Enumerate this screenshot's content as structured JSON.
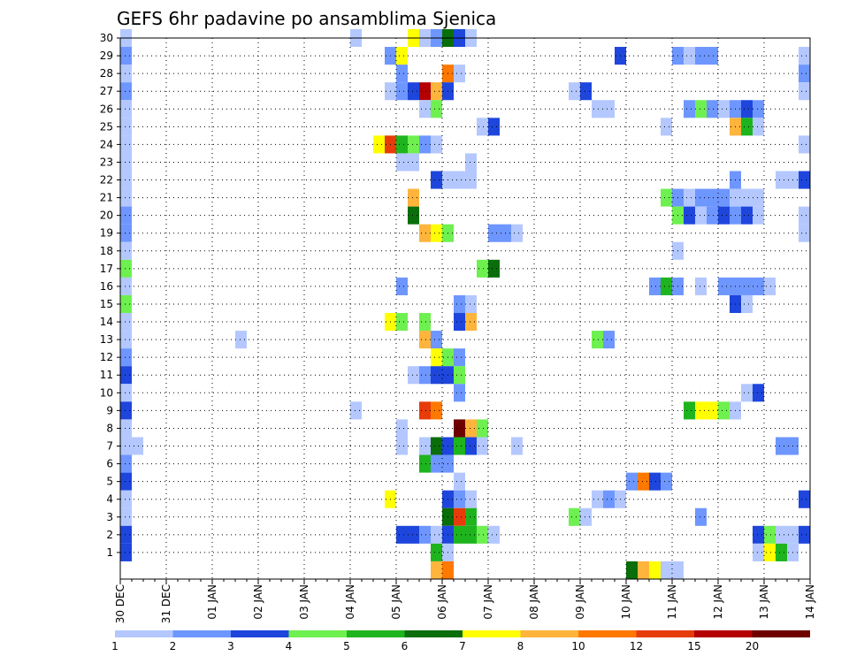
{
  "chart_data": {
    "type": "heatmap",
    "title": "GEFS 6hr padavine po ansamblima Sjenica",
    "xlabel": "",
    "ylabel": "",
    "x_tick_labels": [
      "30 DEC",
      "31 DEC",
      "01 JAN",
      "02 JAN",
      "03 JAN",
      "04 JAN",
      "05 JAN",
      "06 JAN",
      "07 JAN",
      "08 JAN",
      "09 JAN",
      "10 JAN",
      "11 JAN",
      "12 JAN",
      "13 JAN",
      "14 JAN"
    ],
    "y_tick_labels": [
      "1",
      "2",
      "3",
      "4",
      "5",
      "6",
      "7",
      "8",
      "9",
      "10",
      "11",
      "12",
      "13",
      "14",
      "15",
      "16",
      "17",
      "18",
      "19",
      "20",
      "21",
      "22",
      "23",
      "24",
      "25",
      "26",
      "27",
      "28",
      "29",
      "30"
    ],
    "x_range_days": [
      0,
      15
    ],
    "members": 30,
    "grid": true,
    "colorbar": {
      "labels": [
        "1",
        "2",
        "3",
        "4",
        "5",
        "6",
        "7",
        "8",
        "10",
        "12",
        "15",
        "20"
      ],
      "colors": [
        "#b4c8ff",
        "#6e96ff",
        "#1e46dc",
        "#6ef050",
        "#1eb41e",
        "#0a6e0a",
        "#ffff00",
        "#ffb43c",
        "#ff7800",
        "#e63c0a",
        "#b40000",
        "#6e0000"
      ]
    },
    "cells": [
      {
        "m": 30,
        "d": 0.0,
        "c": 1
      },
      {
        "m": 29,
        "d": 0.0,
        "c": 2
      },
      {
        "m": 28,
        "d": 0.0,
        "c": 1
      },
      {
        "m": 27,
        "d": 0.0,
        "c": 2
      },
      {
        "m": 26,
        "d": 0.0,
        "c": 1
      },
      {
        "m": 25,
        "d": 0.0,
        "c": 1
      },
      {
        "m": 24,
        "d": 0.0,
        "c": 1
      },
      {
        "m": 23,
        "d": 0.0,
        "c": 1
      },
      {
        "m": 22,
        "d": 0.0,
        "c": 1
      },
      {
        "m": 21,
        "d": 0.0,
        "c": 1
      },
      {
        "m": 20,
        "d": 0.0,
        "c": 2
      },
      {
        "m": 19,
        "d": 0.0,
        "c": 2
      },
      {
        "m": 18,
        "d": 0.0,
        "c": 1
      },
      {
        "m": 17,
        "d": 0.0,
        "c": 4
      },
      {
        "m": 16,
        "d": 0.0,
        "c": 1
      },
      {
        "m": 15,
        "d": 0.0,
        "c": 4
      },
      {
        "m": 14,
        "d": 0.0,
        "c": 1
      },
      {
        "m": 13,
        "d": 0.0,
        "c": 1
      },
      {
        "m": 12,
        "d": 0.0,
        "c": 2
      },
      {
        "m": 11,
        "d": 0.0,
        "c": 3
      },
      {
        "m": 10,
        "d": 0.0,
        "c": 1
      },
      {
        "m": 9,
        "d": 0.0,
        "c": 3
      },
      {
        "m": 8,
        "d": 0.0,
        "c": 1
      },
      {
        "m": 7,
        "d": 0.0,
        "c": 1
      },
      {
        "m": 7,
        "d": 0.25,
        "c": 1
      },
      {
        "m": 6,
        "d": 0.0,
        "c": 2
      },
      {
        "m": 5,
        "d": 0.0,
        "c": 3
      },
      {
        "m": 4,
        "d": 0.0,
        "c": 1
      },
      {
        "m": 3,
        "d": 0.0,
        "c": 1
      },
      {
        "m": 2,
        "d": 0.0,
        "c": 3
      },
      {
        "m": 1,
        "d": 0.0,
        "c": 3
      },
      {
        "m": 13,
        "d": 2.5,
        "c": 1
      },
      {
        "m": 30,
        "d": 5.0,
        "c": 1
      },
      {
        "m": 9,
        "d": 5.0,
        "c": 1
      },
      {
        "m": 30,
        "d": 6.25,
        "c": 7
      },
      {
        "m": 30,
        "d": 6.5,
        "c": 1
      },
      {
        "m": 30,
        "d": 6.75,
        "c": 2
      },
      {
        "m": 30,
        "d": 7.0,
        "c": 6
      },
      {
        "m": 30,
        "d": 7.25,
        "c": 3
      },
      {
        "m": 30,
        "d": 7.5,
        "c": 1
      },
      {
        "m": 29,
        "d": 5.75,
        "c": 2
      },
      {
        "m": 29,
        "d": 6.0,
        "c": 7
      },
      {
        "m": 28,
        "d": 6.0,
        "c": 2
      },
      {
        "m": 28,
        "d": 7.0,
        "c": 9
      },
      {
        "m": 28,
        "d": 7.25,
        "c": 1
      },
      {
        "m": 27,
        "d": 5.75,
        "c": 1
      },
      {
        "m": 27,
        "d": 6.0,
        "c": 2
      },
      {
        "m": 27,
        "d": 6.25,
        "c": 3
      },
      {
        "m": 27,
        "d": 6.5,
        "c": 11
      },
      {
        "m": 27,
        "d": 6.75,
        "c": 8
      },
      {
        "m": 27,
        "d": 7.0,
        "c": 3
      },
      {
        "m": 26,
        "d": 6.5,
        "c": 1
      },
      {
        "m": 26,
        "d": 6.75,
        "c": 4
      },
      {
        "m": 25,
        "d": 7.75,
        "c": 1
      },
      {
        "m": 25,
        "d": 8.0,
        "c": 3
      },
      {
        "m": 24,
        "d": 5.5,
        "c": 7
      },
      {
        "m": 24,
        "d": 5.75,
        "c": 10
      },
      {
        "m": 24,
        "d": 6.0,
        "c": 5
      },
      {
        "m": 24,
        "d": 6.25,
        "c": 4
      },
      {
        "m": 24,
        "d": 6.5,
        "c": 2
      },
      {
        "m": 24,
        "d": 6.75,
        "c": 1
      },
      {
        "m": 23,
        "d": 6.0,
        "c": 1
      },
      {
        "m": 23,
        "d": 6.25,
        "c": 1
      },
      {
        "m": 23,
        "d": 7.5,
        "c": 1
      },
      {
        "m": 22,
        "d": 6.75,
        "c": 3
      },
      {
        "m": 22,
        "d": 7.0,
        "c": 1
      },
      {
        "m": 22,
        "d": 7.25,
        "c": 1
      },
      {
        "m": 22,
        "d": 7.5,
        "c": 1
      },
      {
        "m": 21,
        "d": 6.25,
        "c": 8
      },
      {
        "m": 20,
        "d": 6.25,
        "c": 6
      },
      {
        "m": 19,
        "d": 6.5,
        "c": 8
      },
      {
        "m": 19,
        "d": 6.75,
        "c": 7
      },
      {
        "m": 19,
        "d": 7.0,
        "c": 4
      },
      {
        "m": 19,
        "d": 8.0,
        "c": 2
      },
      {
        "m": 19,
        "d": 8.25,
        "c": 2
      },
      {
        "m": 19,
        "d": 8.5,
        "c": 1
      },
      {
        "m": 16,
        "d": 6.0,
        "c": 2
      },
      {
        "m": 17,
        "d": 7.75,
        "c": 4
      },
      {
        "m": 17,
        "d": 8.0,
        "c": 6
      },
      {
        "m": 15,
        "d": 7.25,
        "c": 2
      },
      {
        "m": 15,
        "d": 7.5,
        "c": 1
      },
      {
        "m": 14,
        "d": 5.75,
        "c": 7
      },
      {
        "m": 14,
        "d": 6.0,
        "c": 4
      },
      {
        "m": 14,
        "d": 6.5,
        "c": 4
      },
      {
        "m": 14,
        "d": 7.25,
        "c": 3
      },
      {
        "m": 14,
        "d": 7.5,
        "c": 8
      },
      {
        "m": 13,
        "d": 6.5,
        "c": 8
      },
      {
        "m": 13,
        "d": 6.75,
        "c": 2
      },
      {
        "m": 12,
        "d": 6.75,
        "c": 7
      },
      {
        "m": 12,
        "d": 7.0,
        "c": 4
      },
      {
        "m": 12,
        "d": 7.25,
        "c": 2
      },
      {
        "m": 11,
        "d": 6.25,
        "c": 1
      },
      {
        "m": 11,
        "d": 6.5,
        "c": 2
      },
      {
        "m": 11,
        "d": 6.75,
        "c": 3
      },
      {
        "m": 11,
        "d": 7.0,
        "c": 3
      },
      {
        "m": 11,
        "d": 7.25,
        "c": 4
      },
      {
        "m": 10,
        "d": 7.25,
        "c": 2
      },
      {
        "m": 9,
        "d": 6.5,
        "c": 10
      },
      {
        "m": 9,
        "d": 6.75,
        "c": 9
      },
      {
        "m": 8,
        "d": 6.0,
        "c": 1
      },
      {
        "m": 8,
        "d": 7.25,
        "c": 12
      },
      {
        "m": 8,
        "d": 7.5,
        "c": 8
      },
      {
        "m": 8,
        "d": 7.75,
        "c": 4
      },
      {
        "m": 7,
        "d": 6.0,
        "c": 1
      },
      {
        "m": 7,
        "d": 6.5,
        "c": 1
      },
      {
        "m": 7,
        "d": 6.75,
        "c": 6
      },
      {
        "m": 7,
        "d": 7.0,
        "c": 3
      },
      {
        "m": 7,
        "d": 7.25,
        "c": 5
      },
      {
        "m": 7,
        "d": 7.5,
        "c": 3
      },
      {
        "m": 7,
        "d": 7.75,
        "c": 1
      },
      {
        "m": 7,
        "d": 8.5,
        "c": 1
      },
      {
        "m": 6,
        "d": 6.5,
        "c": 5
      },
      {
        "m": 6,
        "d": 6.75,
        "c": 2
      },
      {
        "m": 6,
        "d": 7.0,
        "c": 2
      },
      {
        "m": 5,
        "d": 7.25,
        "c": 1
      },
      {
        "m": 4,
        "d": 5.75,
        "c": 7
      },
      {
        "m": 4,
        "d": 7.0,
        "c": 3
      },
      {
        "m": 4,
        "d": 7.25,
        "c": 2
      },
      {
        "m": 4,
        "d": 7.5,
        "c": 1
      },
      {
        "m": 3,
        "d": 7.0,
        "c": 6
      },
      {
        "m": 3,
        "d": 7.25,
        "c": 10
      },
      {
        "m": 3,
        "d": 7.5,
        "c": 5
      },
      {
        "m": 2,
        "d": 6.0,
        "c": 3
      },
      {
        "m": 2,
        "d": 6.25,
        "c": 3
      },
      {
        "m": 2,
        "d": 6.5,
        "c": 2
      },
      {
        "m": 2,
        "d": 6.75,
        "c": 1
      },
      {
        "m": 2,
        "d": 7.0,
        "c": 3
      },
      {
        "m": 2,
        "d": 7.25,
        "c": 5
      },
      {
        "m": 2,
        "d": 7.5,
        "c": 5
      },
      {
        "m": 2,
        "d": 7.75,
        "c": 4
      },
      {
        "m": 2,
        "d": 8.0,
        "c": 1
      },
      {
        "m": 1,
        "d": 6.75,
        "c": 5
      },
      {
        "m": 1,
        "d": 7.0,
        "c": 1
      },
      {
        "m": 0,
        "d": 6.75,
        "c": 8
      },
      {
        "m": 0,
        "d": 7.0,
        "c": 9
      },
      {
        "m": 29,
        "d": 10.75,
        "c": 3
      },
      {
        "m": 27,
        "d": 9.75,
        "c": 1
      },
      {
        "m": 27,
        "d": 10.0,
        "c": 3
      },
      {
        "m": 26,
        "d": 10.25,
        "c": 1
      },
      {
        "m": 26,
        "d": 10.5,
        "c": 1
      },
      {
        "m": 13,
        "d": 10.25,
        "c": 4
      },
      {
        "m": 13,
        "d": 10.5,
        "c": 2
      },
      {
        "m": 3,
        "d": 9.75,
        "c": 4
      },
      {
        "m": 3,
        "d": 10.0,
        "c": 1
      },
      {
        "m": 4,
        "d": 10.25,
        "c": 1
      },
      {
        "m": 4,
        "d": 10.5,
        "c": 2
      },
      {
        "m": 4,
        "d": 10.75,
        "c": 1
      },
      {
        "m": 5,
        "d": 11.0,
        "c": 2
      },
      {
        "m": 5,
        "d": 11.25,
        "c": 9
      },
      {
        "m": 5,
        "d": 11.5,
        "c": 3
      },
      {
        "m": 5,
        "d": 11.75,
        "c": 2
      },
      {
        "m": 0,
        "d": 11.0,
        "c": 6
      },
      {
        "m": 0,
        "d": 11.25,
        "c": 8
      },
      {
        "m": 0,
        "d": 11.5,
        "c": 7
      },
      {
        "m": 0,
        "d": 11.75,
        "c": 1
      },
      {
        "m": 0,
        "d": 12.0,
        "c": 1
      },
      {
        "m": 29,
        "d": 12.0,
        "c": 2
      },
      {
        "m": 29,
        "d": 12.25,
        "c": 1
      },
      {
        "m": 29,
        "d": 12.5,
        "c": 2
      },
      {
        "m": 29,
        "d": 12.75,
        "c": 2
      },
      {
        "m": 26,
        "d": 12.25,
        "c": 2
      },
      {
        "m": 26,
        "d": 12.5,
        "c": 4
      },
      {
        "m": 26,
        "d": 12.75,
        "c": 2
      },
      {
        "m": 26,
        "d": 13.0,
        "c": 1
      },
      {
        "m": 26,
        "d": 13.25,
        "c": 2
      },
      {
        "m": 26,
        "d": 13.5,
        "c": 3
      },
      {
        "m": 26,
        "d": 13.75,
        "c": 2
      },
      {
        "m": 25,
        "d": 11.75,
        "c": 1
      },
      {
        "m": 25,
        "d": 13.25,
        "c": 8
      },
      {
        "m": 25,
        "d": 13.5,
        "c": 5
      },
      {
        "m": 25,
        "d": 13.75,
        "c": 1
      },
      {
        "m": 22,
        "d": 13.25,
        "c": 2
      },
      {
        "m": 21,
        "d": 11.75,
        "c": 4
      },
      {
        "m": 21,
        "d": 12.0,
        "c": 2
      },
      {
        "m": 21,
        "d": 12.25,
        "c": 1
      },
      {
        "m": 21,
        "d": 12.5,
        "c": 2
      },
      {
        "m": 21,
        "d": 12.75,
        "c": 2
      },
      {
        "m": 21,
        "d": 13.0,
        "c": 2
      },
      {
        "m": 21,
        "d": 13.25,
        "c": 1
      },
      {
        "m": 21,
        "d": 13.5,
        "c": 1
      },
      {
        "m": 21,
        "d": 13.75,
        "c": 1
      },
      {
        "m": 20,
        "d": 12.0,
        "c": 4
      },
      {
        "m": 20,
        "d": 12.25,
        "c": 3
      },
      {
        "m": 20,
        "d": 12.5,
        "c": 1
      },
      {
        "m": 20,
        "d": 12.75,
        "c": 2
      },
      {
        "m": 20,
        "d": 13.0,
        "c": 3
      },
      {
        "m": 20,
        "d": 13.25,
        "c": 2
      },
      {
        "m": 20,
        "d": 13.5,
        "c": 3
      },
      {
        "m": 20,
        "d": 13.75,
        "c": 1
      },
      {
        "m": 18,
        "d": 12.0,
        "c": 1
      },
      {
        "m": 16,
        "d": 11.5,
        "c": 2
      },
      {
        "m": 16,
        "d": 11.75,
        "c": 5
      },
      {
        "m": 16,
        "d": 12.0,
        "c": 2
      },
      {
        "m": 16,
        "d": 12.5,
        "c": 1
      },
      {
        "m": 16,
        "d": 13.0,
        "c": 2
      },
      {
        "m": 16,
        "d": 13.25,
        "c": 2
      },
      {
        "m": 16,
        "d": 13.5,
        "c": 2
      },
      {
        "m": 16,
        "d": 13.75,
        "c": 2
      },
      {
        "m": 16,
        "d": 14.0,
        "c": 1
      },
      {
        "m": 15,
        "d": 13.25,
        "c": 3
      },
      {
        "m": 15,
        "d": 13.5,
        "c": 1
      },
      {
        "m": 9,
        "d": 12.25,
        "c": 5
      },
      {
        "m": 9,
        "d": 12.5,
        "c": 7
      },
      {
        "m": 9,
        "d": 12.75,
        "c": 7
      },
      {
        "m": 9,
        "d": 13.0,
        "c": 4
      },
      {
        "m": 9,
        "d": 13.25,
        "c": 1
      },
      {
        "m": 10,
        "d": 13.5,
        "c": 1
      },
      {
        "m": 10,
        "d": 13.75,
        "c": 3
      },
      {
        "m": 3,
        "d": 12.5,
        "c": 2
      },
      {
        "m": 29,
        "d": 14.75,
        "c": 1
      },
      {
        "m": 28,
        "d": 14.75,
        "c": 2
      },
      {
        "m": 27,
        "d": 14.75,
        "c": 1
      },
      {
        "m": 24,
        "d": 14.75,
        "c": 1
      },
      {
        "m": 22,
        "d": 14.25,
        "c": 1
      },
      {
        "m": 22,
        "d": 14.5,
        "c": 1
      },
      {
        "m": 22,
        "d": 14.75,
        "c": 3
      },
      {
        "m": 20,
        "d": 14.75,
        "c": 1
      },
      {
        "m": 19,
        "d": 14.75,
        "c": 1
      },
      {
        "m": 7,
        "d": 14.25,
        "c": 2
      },
      {
        "m": 7,
        "d": 14.5,
        "c": 2
      },
      {
        "m": 4,
        "d": 14.75,
        "c": 3
      },
      {
        "m": 2,
        "d": 13.75,
        "c": 3
      },
      {
        "m": 2,
        "d": 14.0,
        "c": 4
      },
      {
        "m": 2,
        "d": 14.25,
        "c": 1
      },
      {
        "m": 2,
        "d": 14.5,
        "c": 1
      },
      {
        "m": 2,
        "d": 14.75,
        "c": 3
      },
      {
        "m": 1,
        "d": 13.75,
        "c": 1
      },
      {
        "m": 1,
        "d": 14.0,
        "c": 7
      },
      {
        "m": 1,
        "d": 14.25,
        "c": 5
      },
      {
        "m": 1,
        "d": 14.5,
        "c": 1
      }
    ]
  }
}
